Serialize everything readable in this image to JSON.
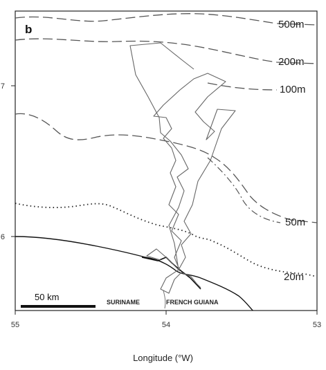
{
  "panel_label": "b",
  "xaxis": {
    "title": "Longitude (°W)",
    "ticks": [
      "55",
      "54",
      "53"
    ]
  },
  "yaxis": {
    "ticks": [
      "7",
      "6"
    ]
  },
  "isobaths": [
    {
      "label": "500m",
      "style": "dashed"
    },
    {
      "label": "200m",
      "style": "dashed"
    },
    {
      "label": "100m",
      "style": "dashed"
    },
    {
      "label": "50m",
      "style": "dash-dot"
    },
    {
      "label": "20m",
      "style": "dotted"
    }
  ],
  "scale_bar": {
    "label": "50 km"
  },
  "countries": [
    {
      "name": "SURINAME"
    },
    {
      "name": "FRENCH GUIANA"
    }
  ],
  "colors": {
    "coastline": "#111111",
    "isobath": "#555555",
    "track": "#666666",
    "frame": "#222222"
  }
}
